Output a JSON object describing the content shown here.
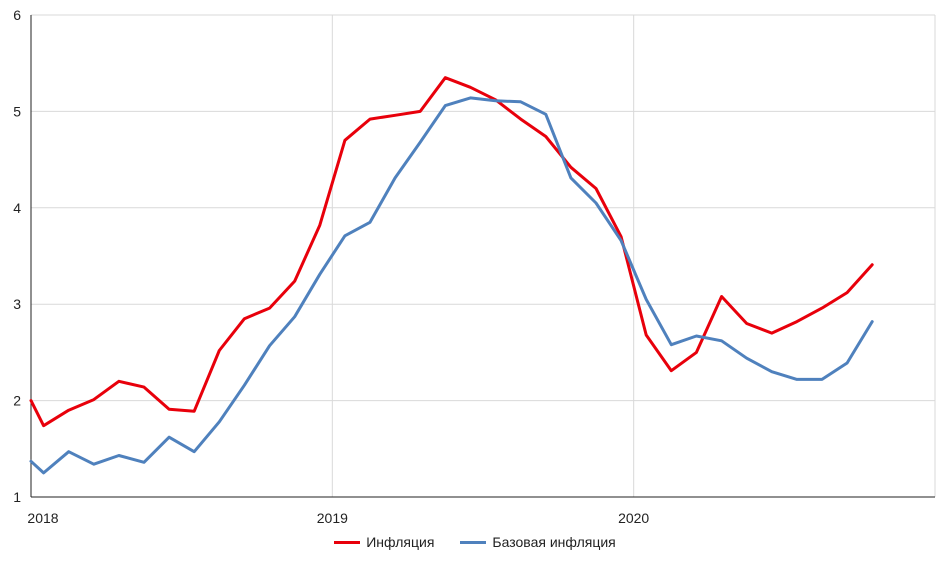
{
  "chart_data": {
    "type": "line",
    "title": "",
    "xlabel": "",
    "ylabel": "",
    "ylim": [
      1,
      6
    ],
    "yticks": [
      "1",
      "2",
      "3",
      "4",
      "5",
      "6"
    ],
    "xticks": [
      {
        "label": "2018",
        "x": 2018.0
      },
      {
        "label": "2019",
        "x": 2019.0
      },
      {
        "label": "2020",
        "x": 2020.0
      }
    ],
    "xlim": [
      2018.0,
      2021.0
    ],
    "grid": true,
    "legend_position": "bottom",
    "x": [
      2018.0,
      2018.0417,
      2018.125,
      2018.2083,
      2018.2917,
      2018.375,
      2018.4583,
      2018.5417,
      2018.625,
      2018.7083,
      2018.7917,
      2018.875,
      2018.9583,
      2019.0417,
      2019.125,
      2019.2083,
      2019.2917,
      2019.375,
      2019.4583,
      2019.5417,
      2019.625,
      2019.7083,
      2019.7917,
      2019.875,
      2019.9583,
      2020.0417,
      2020.125,
      2020.2083,
      2020.2917,
      2020.375,
      2020.4583,
      2020.5417,
      2020.625,
      2020.7083,
      2020.7917
    ],
    "series": [
      {
        "name": "Инфляция",
        "color": "#e8000b",
        "values": [
          2.0,
          1.74,
          1.9,
          2.01,
          2.2,
          2.14,
          1.91,
          1.89,
          2.52,
          2.85,
          2.96,
          3.24,
          3.82,
          4.7,
          4.92,
          4.96,
          5.0,
          5.35,
          5.25,
          5.12,
          4.92,
          4.74,
          4.42,
          4.2,
          3.7,
          2.68,
          2.31,
          2.5,
          3.08,
          2.8,
          2.7,
          2.82,
          2.96,
          3.12,
          3.41
        ]
      },
      {
        "name": "Базовая инфляция",
        "color": "#4f81bd",
        "values": [
          1.37,
          1.25,
          1.47,
          1.34,
          1.43,
          1.36,
          1.62,
          1.47,
          1.78,
          2.16,
          2.57,
          2.87,
          3.31,
          3.71,
          3.85,
          4.31,
          4.68,
          5.06,
          5.14,
          5.11,
          5.1,
          4.97,
          4.31,
          4.05,
          3.66,
          3.05,
          2.58,
          2.67,
          2.62,
          2.44,
          2.3,
          2.22,
          2.22,
          2.39,
          2.82
        ]
      }
    ]
  }
}
